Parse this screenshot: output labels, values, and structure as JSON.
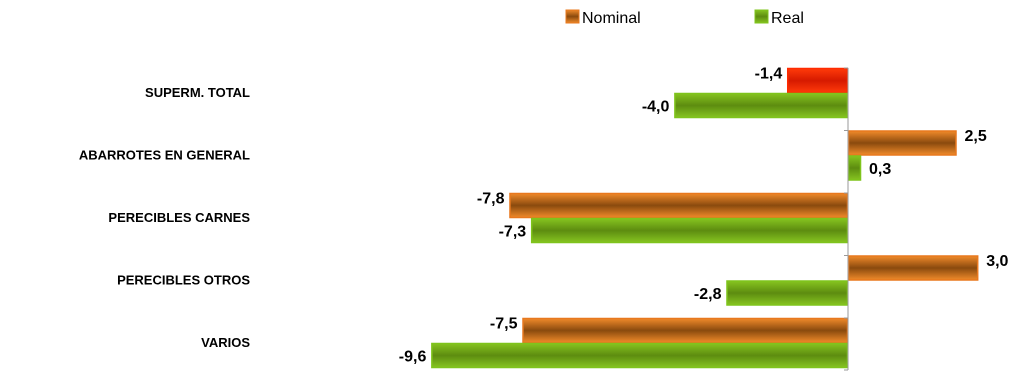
{
  "chart_data": {
    "type": "bar",
    "orientation": "horizontal",
    "title": "",
    "xlabel": "",
    "ylabel": "",
    "categories": [
      "SUPERM. TOTAL",
      "ABARROTES EN GENERAL",
      "PERECIBLES CARNES",
      "PERECIBLES OTROS",
      "VARIOS"
    ],
    "series": [
      {
        "name": "Nominal",
        "values": [
          -1.4,
          2.5,
          -7.8,
          3.0,
          -7.5
        ],
        "labels": [
          "-1,4",
          "2,5",
          "-7,8",
          "3,0",
          "-7,5"
        ],
        "color": "#e8781e",
        "dark": "#8a4a0e"
      },
      {
        "name": "Real",
        "values": [
          -4.0,
          0.3,
          -7.3,
          -2.8,
          -9.6
        ],
        "labels": [
          "-4,0",
          "0,3",
          "-7,3",
          "-2,8",
          "-9,6"
        ],
        "color": "#7fc41c",
        "dark": "#5a8a10"
      }
    ],
    "highlight": {
      "series": 0,
      "index": 0,
      "color": "#ff2a00"
    },
    "xlim": [
      -9.6,
      3.0
    ],
    "grid": false,
    "legend_position": "top"
  }
}
